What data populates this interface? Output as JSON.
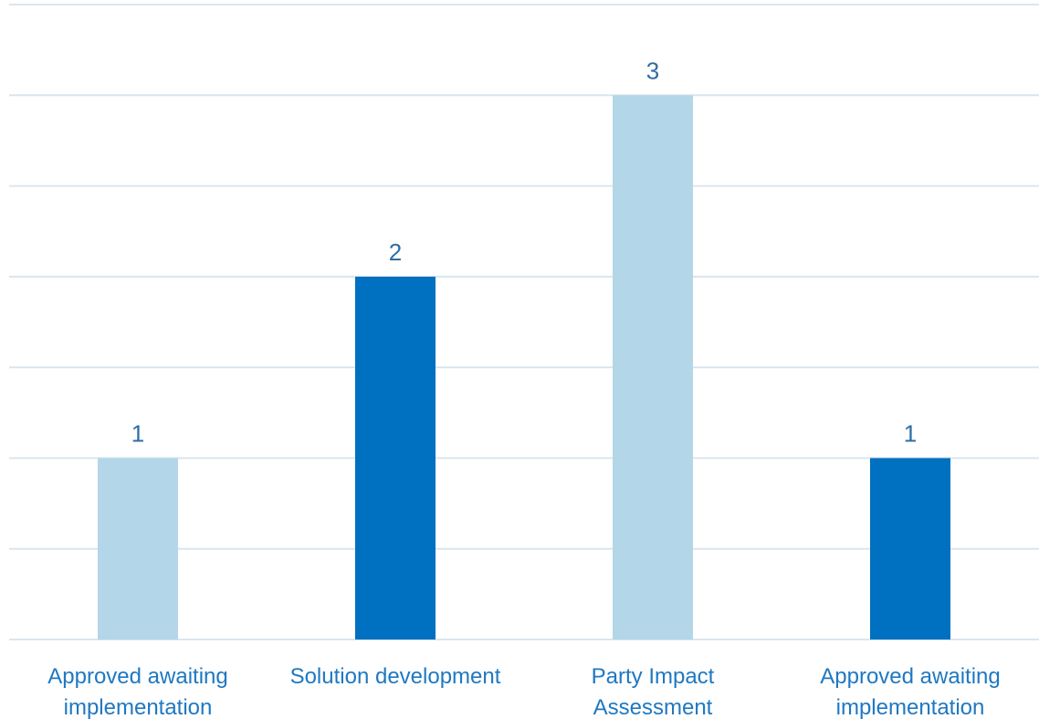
{
  "chart_data": {
    "type": "bar",
    "categories": [
      [
        "Approved awaiting",
        "implementation"
      ],
      [
        "Solution development"
      ],
      [
        "Party Impact",
        "Assessment"
      ],
      [
        "Approved awaiting",
        "implementation"
      ]
    ],
    "values": [
      1,
      2,
      3,
      1
    ],
    "data_labels": [
      "1",
      "2",
      "3",
      "1"
    ],
    "bar_colors": [
      "#b3d6e8",
      "#0070c0",
      "#b3d6e8",
      "#0070c0"
    ],
    "ylim": [
      0,
      3.5
    ],
    "gridline_step": 0.5,
    "grid": true,
    "legend": "none",
    "title": "",
    "xlabel": "",
    "ylabel": ""
  },
  "colors": {
    "gridline": "#d9e6ef",
    "data_label": "#2e6da4",
    "tick_label": "#1f78c1"
  }
}
